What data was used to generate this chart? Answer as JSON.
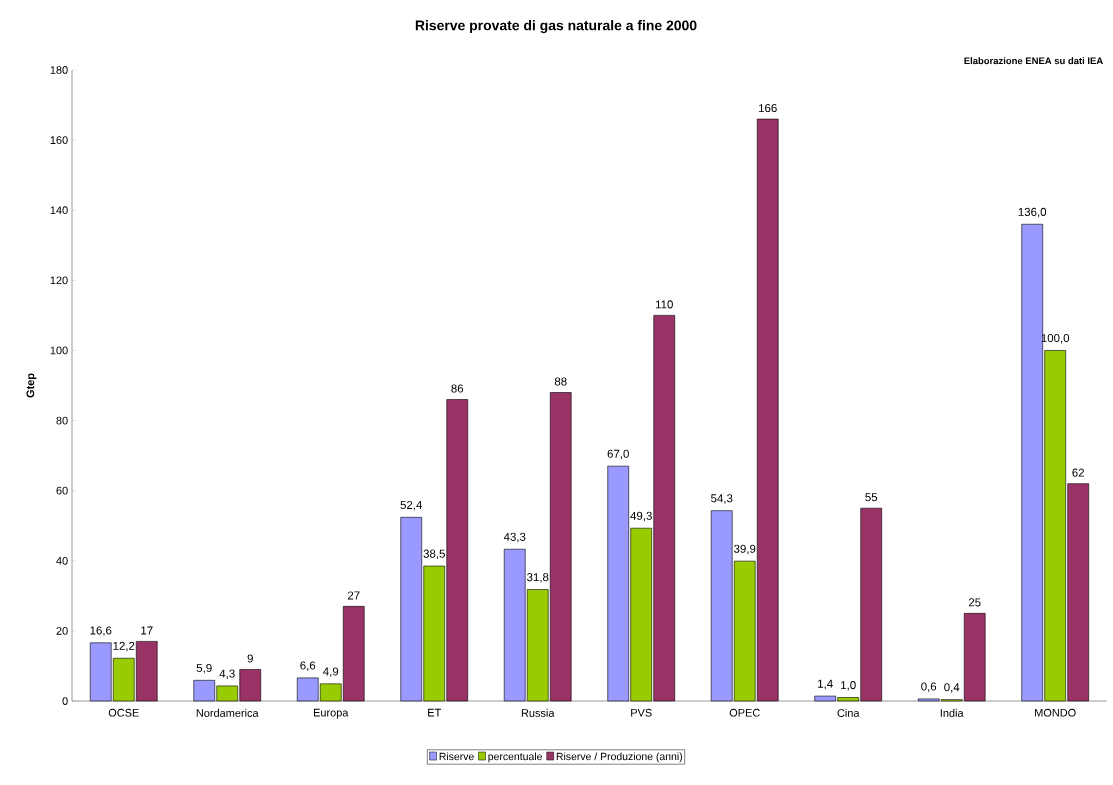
{
  "chart_data": {
    "type": "bar",
    "title": "Riserve provate di gas naturale a fine 2000",
    "ylabel": "Gtep",
    "annotations": [
      "Elaborazione ENEA su dati IEA"
    ],
    "categories": [
      "OCSE",
      "Nordamerica",
      "Europa",
      "ET",
      "Russia",
      "PVS",
      "OPEC",
      "Cina",
      "India",
      "MONDO"
    ],
    "series": [
      {
        "name": "Riserve",
        "color": "#9999ff",
        "values": [
          16.6,
          5.9,
          6.6,
          52.4,
          43.3,
          67.0,
          54.3,
          1.4,
          0.6,
          136.0
        ],
        "value_labels": [
          "16,6",
          "5,9",
          "6,6",
          "52,4",
          "43,3",
          "67,0",
          "54,3",
          "1,4",
          "0,6",
          "136,0"
        ]
      },
      {
        "name": "percentuale",
        "color": "#99cc00",
        "values": [
          12.2,
          4.3,
          4.9,
          38.5,
          31.8,
          49.3,
          39.9,
          1.0,
          0.4,
          100.0
        ],
        "value_labels": [
          "12,2",
          "4,3",
          "4,9",
          "38,5",
          "31,8",
          "49,3",
          "39,9",
          "1,0",
          "0,4",
          "100,0"
        ]
      },
      {
        "name": "Riserve / Produzione (anni)",
        "color": "#993366",
        "values": [
          17,
          9,
          27,
          86,
          88,
          110,
          166,
          55,
          25,
          62
        ],
        "value_labels": [
          "17",
          "9",
          "27",
          "86",
          "88",
          "110",
          "166",
          "55",
          "25",
          "62"
        ]
      }
    ],
    "ylim": [
      0,
      180
    ],
    "yticks": [
      0,
      20,
      40,
      60,
      80,
      100,
      120,
      140,
      160,
      180
    ],
    "grid": false,
    "legend": "bottom"
  }
}
